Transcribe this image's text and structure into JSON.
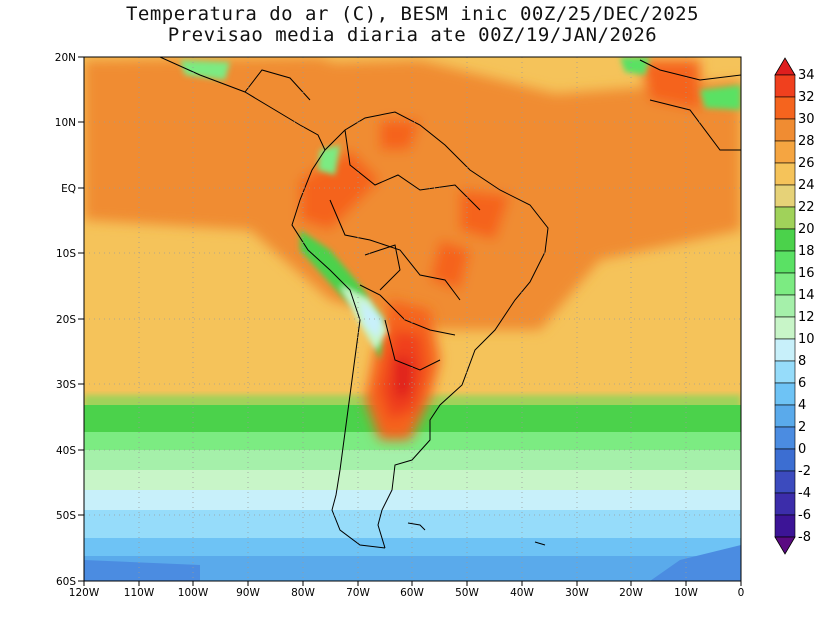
{
  "title": {
    "line1": "Temperatura do ar (C), BESM inic 00Z/25/DEC/2025",
    "line2": "Previsao media diaria ate 00Z/19/JAN/2026"
  },
  "axes": {
    "lat_labels": [
      "20N",
      "10N",
      "EQ",
      "10S",
      "20S",
      "30S",
      "40S",
      "50S",
      "60S"
    ],
    "lon_labels": [
      "120W",
      "110W",
      "100W",
      "90W",
      "80W",
      "70W",
      "60W",
      "50W",
      "40W",
      "30W",
      "20W",
      "10W",
      "0"
    ]
  },
  "colorbar": {
    "labels": [
      "34",
      "32",
      "30",
      "28",
      "26",
      "24",
      "22",
      "20",
      "18",
      "16",
      "14",
      "12",
      "10",
      "8",
      "6",
      "4",
      "2",
      "0",
      "-2",
      "-4",
      "-6",
      "-8"
    ],
    "colors": [
      "#de1e1e",
      "#f0401e",
      "#f5641e",
      "#f08c32",
      "#f5a541",
      "#f5c35a",
      "#e6d278",
      "#a0d25a",
      "#4bd24b",
      "#5ae164",
      "#7ceb82",
      "#a5f0aa",
      "#c8f5c8",
      "#c8f0fa",
      "#96dcfa",
      "#6ec3f5",
      "#5aaaeb",
      "#4b8ce1",
      "#3c6ed2",
      "#3c4bbe",
      "#3c2daa",
      "#3c1496",
      "#5a0a82"
    ]
  }
}
